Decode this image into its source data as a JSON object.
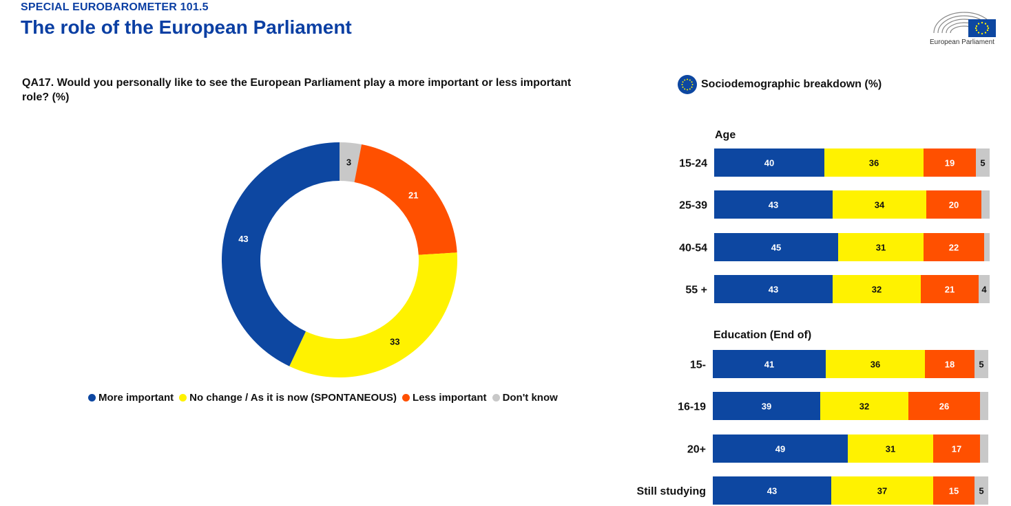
{
  "header": {
    "supertitle": "SPECIAL EUROBAROMETER 101.5",
    "title": "The role of the European Parliament",
    "logo_text": "European Parliament"
  },
  "question": "QA17. Would you personally like to see the European Parliament play a more important or less important role? (%)",
  "breakdown_title": "Sociodemographic breakdown (%)",
  "colors": {
    "more_important": "#0d47a1",
    "no_change": "#fff200",
    "less_important": "#ff5000",
    "dont_know": "#c8c8c8",
    "heading": "#0b3fa3"
  },
  "legend": [
    {
      "label": "More important",
      "color": "#0d47a1"
    },
    {
      "label": "No change / As it is now (SPONTANEOUS)",
      "color": "#fff200"
    },
    {
      "label": "Less important",
      "color": "#ff5000"
    },
    {
      "label": "Don't know",
      "color": "#c8c8c8"
    }
  ],
  "chart_data": [
    {
      "type": "pie",
      "variant": "donut",
      "series": [
        {
          "name": "More important",
          "value": 43
        },
        {
          "name": "No change / As it is now (SPONTANEOUS)",
          "value": 33
        },
        {
          "name": "Less important",
          "value": 21
        },
        {
          "name": "Don't know",
          "value": 3
        }
      ]
    },
    {
      "type": "bar",
      "orientation": "horizontal",
      "stacked": true,
      "groups": [
        {
          "title": "Age",
          "categories": [
            "15-24",
            "25-39",
            "40-54",
            "55 +"
          ],
          "rows": [
            {
              "values": [
                40,
                36,
                19,
                5
              ],
              "labels": [
                "40",
                "36",
                "19",
                "5"
              ]
            },
            {
              "values": [
                43,
                34,
                20,
                3
              ],
              "labels": [
                "43",
                "34",
                "20",
                ""
              ]
            },
            {
              "values": [
                45,
                31,
                22,
                2
              ],
              "labels": [
                "45",
                "31",
                "22",
                ""
              ]
            },
            {
              "values": [
                43,
                32,
                21,
                4
              ],
              "labels": [
                "43",
                "32",
                "21",
                "4"
              ]
            }
          ]
        },
        {
          "title": "Education (End of)",
          "categories": [
            "15-",
            "16-19",
            "20+",
            "Still studying"
          ],
          "rows": [
            {
              "values": [
                41,
                36,
                18,
                5
              ],
              "labels": [
                "41",
                "36",
                "18",
                "5"
              ]
            },
            {
              "values": [
                39,
                32,
                26,
                3
              ],
              "labels": [
                "39",
                "32",
                "26",
                ""
              ]
            },
            {
              "values": [
                49,
                31,
                17,
                3
              ],
              "labels": [
                "49",
                "31",
                "17",
                ""
              ]
            },
            {
              "values": [
                43,
                37,
                15,
                5
              ],
              "labels": [
                "43",
                "37",
                "15",
                "5"
              ]
            }
          ]
        }
      ]
    }
  ]
}
